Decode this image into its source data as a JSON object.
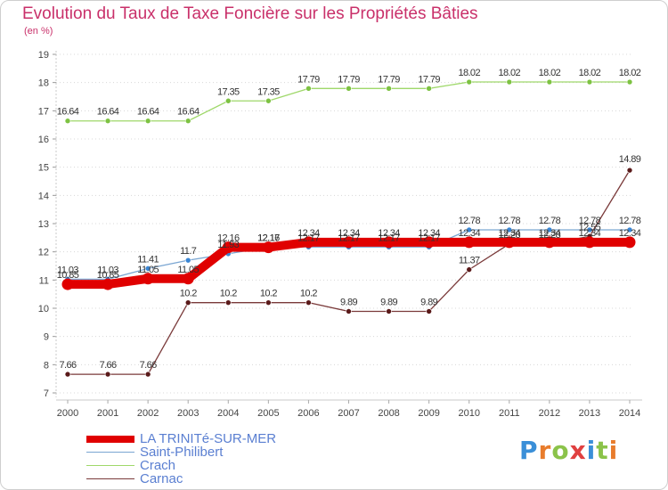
{
  "header": {
    "title": "Evolution du Taux de Taxe Foncière sur les Propriétés Bâties",
    "unit": "(en %)"
  },
  "brand": {
    "name": "Proxiti",
    "letters": [
      "P",
      "r",
      "o",
      "x",
      "i",
      "t",
      "i"
    ],
    "letter_colors": [
      "#3a8fd8",
      "#e87c2c",
      "#8bc34a",
      "#e04040",
      "#3a8fd8",
      "#8bc34a",
      "#e87c2c"
    ]
  },
  "chart_data": {
    "type": "line",
    "title": "Evolution du Taux de Taxe Foncière sur les Propriétés Bâties",
    "ylabel": "(en %)",
    "xlabel": "",
    "x": [
      "2000",
      "2001",
      "2002",
      "2003",
      "2004",
      "2005",
      "2006",
      "2007",
      "2008",
      "2009",
      "2010",
      "2011",
      "2012",
      "2013",
      "2014"
    ],
    "ylim": [
      7,
      19
    ],
    "yticks": [
      "7",
      "8",
      "9",
      "10",
      "11",
      "12",
      "13",
      "14",
      "15",
      "16",
      "17",
      "18",
      "19"
    ],
    "grid": "horizontal-dotted",
    "legend_position": "bottom-left",
    "series": [
      {
        "name": "LA TRINITé-SUR-MER",
        "color": "#e00000",
        "marker": "#e00000",
        "width": "thick",
        "values": [
          10.85,
          10.85,
          11.05,
          11.05,
          12.16,
          12.16,
          12.34,
          12.34,
          12.34,
          12.34,
          12.34,
          12.34,
          12.34,
          12.34,
          12.34
        ],
        "labels": [
          "10.85",
          "10.85",
          "11.05",
          "11.05",
          "12.16",
          "12.16",
          "12.34",
          "12.34",
          "12.34",
          "12.34",
          "12.34",
          "12.34",
          "12.34",
          "12.34",
          "12.34"
        ]
      },
      {
        "name": "Saint-Philibert",
        "color": "#7aa6d2",
        "marker": "#3a86d4",
        "width": "thin",
        "values": [
          11.03,
          11.03,
          11.41,
          11.7,
          11.93,
          12.17,
          12.17,
          12.17,
          12.17,
          12.17,
          12.78,
          12.78,
          12.78,
          12.78,
          12.78
        ],
        "labels": [
          "11.03",
          "11.03",
          "11.41",
          "11.7",
          "11.93",
          "12.17",
          "12.17",
          "12.17",
          "12.17",
          "12.17",
          "12.78",
          "12.78",
          "12.78",
          "12.78",
          "12.78"
        ]
      },
      {
        "name": "Crach",
        "color": "#9fd86a",
        "marker": "#7dc242",
        "width": "thin",
        "values": [
          16.64,
          16.64,
          16.64,
          16.64,
          17.35,
          17.35,
          17.79,
          17.79,
          17.79,
          17.79,
          18.02,
          18.02,
          18.02,
          18.02,
          18.02
        ],
        "labels": [
          "16.64",
          "16.64",
          "16.64",
          "16.64",
          "17.35",
          "17.35",
          "17.79",
          "17.79",
          "17.79",
          "17.79",
          "18.02",
          "18.02",
          "18.02",
          "18.02",
          "18.02"
        ]
      },
      {
        "name": "Carnac",
        "color": "#7a3a3a",
        "marker": "#5a1a1a",
        "width": "thin",
        "values": [
          7.66,
          7.66,
          7.66,
          10.2,
          10.2,
          10.2,
          10.2,
          9.89,
          9.89,
          9.89,
          11.37,
          12.28,
          12.28,
          12.55,
          14.89
        ],
        "labels": [
          "7.66",
          "7.66",
          "7.66",
          "10.2",
          "10.2",
          "10.2",
          "10.2",
          "9.89",
          "9.89",
          "9.89",
          "11.37",
          "12.28",
          "12.28",
          "12.55",
          "14.89"
        ]
      }
    ]
  }
}
